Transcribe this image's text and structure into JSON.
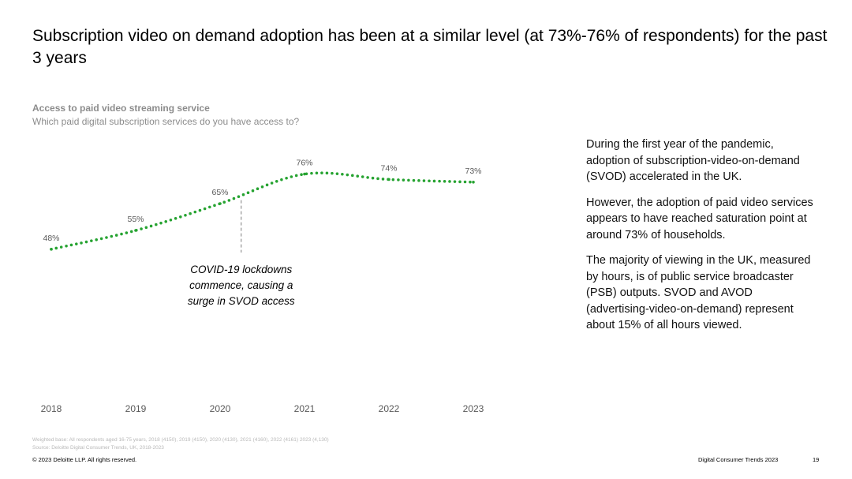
{
  "slide": {
    "title": "Subscription video on demand adoption has been at a similar level (at 73%-76% of respondents) for the past 3 years",
    "chart_heading": "Access to paid video streaming service",
    "chart_subheading": "Which paid digital subscription services do you have access to?",
    "annotation": "COVID-19 lockdowns commence, causing a surge in SVOD access",
    "paragraphs": [
      "During the first year of the pandemic, adoption of subscription-video-on-demand (SVOD) accelerated in the UK.",
      "However, the adoption of paid video services appears to have reached saturation point at around 73% of households.",
      "The majority of viewing in the UK, measured by hours, is of public service broadcaster (PSB) outputs. SVOD and AVOD (advertising-video-on-demand) represent about 15% of all hours viewed."
    ],
    "footnote_base": "Weighted base: All respondents aged 16-75 years, 2018 (4150), 2019 (4150), 2020 (4130), 2021 (4160), 2022 (4161) 2023 (4,130)",
    "footnote_source": "Source: Deloitte Digital Consumer Trends, UK, 2018-2023",
    "copyright": "© 2023 Deloitte LLP. All rights reserved.",
    "report_name": "Digital Consumer Trends 2023",
    "page_number": "19"
  },
  "colors": {
    "line": "#26a331",
    "axis_text": "#595959",
    "annotation_line": "#7f7f7f"
  },
  "chart_data": {
    "type": "line",
    "title": "Access to paid video streaming service",
    "subtitle": "Which paid digital subscription services do you have access to?",
    "categories": [
      "2018",
      "2019",
      "2020",
      "2021",
      "2022",
      "2023"
    ],
    "values": [
      48,
      55,
      65,
      76,
      74,
      73
    ],
    "data_labels": [
      "48%",
      "55%",
      "65%",
      "76%",
      "74%",
      "73%"
    ],
    "line_style": "dotted",
    "ylim": [
      35,
      85
    ],
    "grid": false,
    "legend": "none",
    "annotation": {
      "text": "COVID-19 lockdowns commence, causing a surge in SVOD access",
      "x": 2020.25
    }
  }
}
